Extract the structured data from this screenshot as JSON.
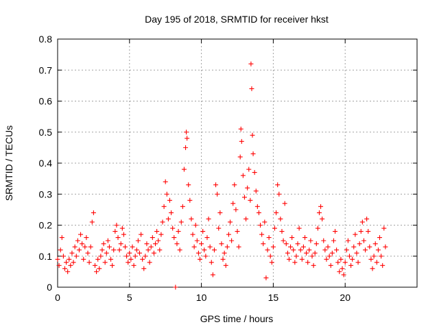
{
  "chart_data": {
    "type": "scatter",
    "title": "Day 195 of 2018, SRMTID for receiver hkst",
    "xlabel": "GPS time / hours",
    "ylabel": "SRMTID / TECUs",
    "xlim": [
      0,
      25
    ],
    "ylim": [
      0,
      0.8
    ],
    "xticks": [
      0,
      5,
      10,
      15,
      20
    ],
    "xtick_labels": [
      "0",
      "5",
      "10",
      "15",
      "20"
    ],
    "yticks": [
      0,
      0.1,
      0.2,
      0.3,
      0.4,
      0.5,
      0.6,
      0.7,
      0.8
    ],
    "ytick_labels": [
      "0",
      "0.1",
      "0.2",
      "0.3",
      "0.4",
      "0.5",
      "0.6",
      "0.7",
      "0.8"
    ],
    "grid": true,
    "marker": "+",
    "color": "#ff0000",
    "series": [
      {
        "name": "SRMTID",
        "points": [
          [
            0.0,
            0.09
          ],
          [
            0.1,
            0.07
          ],
          [
            0.2,
            0.12
          ],
          [
            0.3,
            0.16
          ],
          [
            0.4,
            0.1
          ],
          [
            0.5,
            0.06
          ],
          [
            0.6,
            0.08
          ],
          [
            0.7,
            0.05
          ],
          [
            0.8,
            0.09
          ],
          [
            0.9,
            0.07
          ],
          [
            1.0,
            0.11
          ],
          [
            1.1,
            0.08
          ],
          [
            1.2,
            0.13
          ],
          [
            1.3,
            0.1
          ],
          [
            1.4,
            0.15
          ],
          [
            1.5,
            0.12
          ],
          [
            1.6,
            0.17
          ],
          [
            1.7,
            0.14
          ],
          [
            1.8,
            0.09
          ],
          [
            1.9,
            0.13
          ],
          [
            2.0,
            0.16
          ],
          [
            2.1,
            0.11
          ],
          [
            2.2,
            0.08
          ],
          [
            2.3,
            0.13
          ],
          [
            2.4,
            0.21
          ],
          [
            2.5,
            0.24
          ],
          [
            2.6,
            0.07
          ],
          [
            2.7,
            0.05
          ],
          [
            2.8,
            0.09
          ],
          [
            2.9,
            0.06
          ],
          [
            3.0,
            0.1
          ],
          [
            3.1,
            0.12
          ],
          [
            3.2,
            0.14
          ],
          [
            3.3,
            0.08
          ],
          [
            3.4,
            0.11
          ],
          [
            3.5,
            0.15
          ],
          [
            3.6,
            0.13
          ],
          [
            3.7,
            0.09
          ],
          [
            3.8,
            0.07
          ],
          [
            3.9,
            0.12
          ],
          [
            4.0,
            0.18
          ],
          [
            4.1,
            0.2
          ],
          [
            4.2,
            0.16
          ],
          [
            4.3,
            0.12
          ],
          [
            4.4,
            0.14
          ],
          [
            4.5,
            0.19
          ],
          [
            4.6,
            0.17
          ],
          [
            4.7,
            0.13
          ],
          [
            4.8,
            0.1
          ],
          [
            4.9,
            0.08
          ],
          [
            5.0,
            0.11
          ],
          [
            5.1,
            0.09
          ],
          [
            5.2,
            0.13
          ],
          [
            5.3,
            0.07
          ],
          [
            5.4,
            0.1
          ],
          [
            5.5,
            0.12
          ],
          [
            5.6,
            0.15
          ],
          [
            5.7,
            0.11
          ],
          [
            5.8,
            0.17
          ],
          [
            5.9,
            0.09
          ],
          [
            6.0,
            0.06
          ],
          [
            6.1,
            0.1
          ],
          [
            6.2,
            0.14
          ],
          [
            6.3,
            0.12
          ],
          [
            6.4,
            0.08
          ],
          [
            6.5,
            0.13
          ],
          [
            6.6,
            0.16
          ],
          [
            6.7,
            0.11
          ],
          [
            6.8,
            0.14
          ],
          [
            6.9,
            0.18
          ],
          [
            7.0,
            0.15
          ],
          [
            7.1,
            0.12
          ],
          [
            7.2,
            0.17
          ],
          [
            7.3,
            0.21
          ],
          [
            7.4,
            0.26
          ],
          [
            7.5,
            0.34
          ],
          [
            7.6,
            0.3
          ],
          [
            7.7,
            0.22
          ],
          [
            7.8,
            0.28
          ],
          [
            7.9,
            0.24
          ],
          [
            8.0,
            0.19
          ],
          [
            8.1,
            0.16
          ],
          [
            8.2,
            0.0
          ],
          [
            8.3,
            0.14
          ],
          [
            8.4,
            0.18
          ],
          [
            8.5,
            0.12
          ],
          [
            8.6,
            0.21
          ],
          [
            8.7,
            0.26
          ],
          [
            8.8,
            0.38
          ],
          [
            8.9,
            0.45
          ],
          [
            8.95,
            0.5
          ],
          [
            9.0,
            0.48
          ],
          [
            9.1,
            0.33
          ],
          [
            9.2,
            0.28
          ],
          [
            9.3,
            0.22
          ],
          [
            9.4,
            0.17
          ],
          [
            9.5,
            0.13
          ],
          [
            9.6,
            0.2
          ],
          [
            9.7,
            0.15
          ],
          [
            9.8,
            0.11
          ],
          [
            9.9,
            0.09
          ],
          [
            10.0,
            0.14
          ],
          [
            10.1,
            0.18
          ],
          [
            10.2,
            0.12
          ],
          [
            10.3,
            0.1
          ],
          [
            10.4,
            0.16
          ],
          [
            10.5,
            0.22
          ],
          [
            10.6,
            0.13
          ],
          [
            10.7,
            0.08
          ],
          [
            10.8,
            0.04
          ],
          [
            10.9,
            0.12
          ],
          [
            11.0,
            0.33
          ],
          [
            11.1,
            0.3
          ],
          [
            11.2,
            0.19
          ],
          [
            11.3,
            0.24
          ],
          [
            11.4,
            0.14
          ],
          [
            11.5,
            0.09
          ],
          [
            11.6,
            0.11
          ],
          [
            11.7,
            0.07
          ],
          [
            11.8,
            0.13
          ],
          [
            11.9,
            0.17
          ],
          [
            12.0,
            0.21
          ],
          [
            12.1,
            0.15
          ],
          [
            12.2,
            0.27
          ],
          [
            12.3,
            0.33
          ],
          [
            12.4,
            0.25
          ],
          [
            12.5,
            0.18
          ],
          [
            12.6,
            0.13
          ],
          [
            12.7,
            0.42
          ],
          [
            12.75,
            0.51
          ],
          [
            12.8,
            0.47
          ],
          [
            12.9,
            0.36
          ],
          [
            13.0,
            0.29
          ],
          [
            13.1,
            0.22
          ],
          [
            13.2,
            0.32
          ],
          [
            13.3,
            0.38
          ],
          [
            13.4,
            0.28
          ],
          [
            13.45,
            0.72
          ],
          [
            13.5,
            0.64
          ],
          [
            13.55,
            0.49
          ],
          [
            13.6,
            0.43
          ],
          [
            13.7,
            0.37
          ],
          [
            13.8,
            0.31
          ],
          [
            13.9,
            0.26
          ],
          [
            14.0,
            0.24
          ],
          [
            14.1,
            0.2
          ],
          [
            14.2,
            0.17
          ],
          [
            14.3,
            0.14
          ],
          [
            14.4,
            0.21
          ],
          [
            14.5,
            0.03
          ],
          [
            14.6,
            0.12
          ],
          [
            14.7,
            0.16
          ],
          [
            14.8,
            0.1
          ],
          [
            14.9,
            0.08
          ],
          [
            15.0,
            0.13
          ],
          [
            15.1,
            0.19
          ],
          [
            15.2,
            0.24
          ],
          [
            15.3,
            0.33
          ],
          [
            15.4,
            0.3
          ],
          [
            15.5,
            0.22
          ],
          [
            15.6,
            0.18
          ],
          [
            15.7,
            0.15
          ],
          [
            15.8,
            0.27
          ],
          [
            15.9,
            0.14
          ],
          [
            16.0,
            0.11
          ],
          [
            16.1,
            0.09
          ],
          [
            16.2,
            0.13
          ],
          [
            16.3,
            0.16
          ],
          [
            16.4,
            0.12
          ],
          [
            16.5,
            0.08
          ],
          [
            16.6,
            0.1
          ],
          [
            16.7,
            0.14
          ],
          [
            16.8,
            0.19
          ],
          [
            16.9,
            0.12
          ],
          [
            17.0,
            0.09
          ],
          [
            17.1,
            0.13
          ],
          [
            17.2,
            0.16
          ],
          [
            17.3,
            0.11
          ],
          [
            17.4,
            0.08
          ],
          [
            17.5,
            0.12
          ],
          [
            17.6,
            0.15
          ],
          [
            17.7,
            0.1
          ],
          [
            17.8,
            0.07
          ],
          [
            17.9,
            0.11
          ],
          [
            18.0,
            0.14
          ],
          [
            18.1,
            0.19
          ],
          [
            18.2,
            0.24
          ],
          [
            18.3,
            0.26
          ],
          [
            18.4,
            0.22
          ],
          [
            18.5,
            0.15
          ],
          [
            18.6,
            0.12
          ],
          [
            18.7,
            0.09
          ],
          [
            18.8,
            0.13
          ],
          [
            18.9,
            0.1
          ],
          [
            19.0,
            0.07
          ],
          [
            19.1,
            0.11
          ],
          [
            19.2,
            0.15
          ],
          [
            19.3,
            0.18
          ],
          [
            19.4,
            0.12
          ],
          [
            19.5,
            0.08
          ],
          [
            19.6,
            0.05
          ],
          [
            19.7,
            0.09
          ],
          [
            19.8,
            0.06
          ],
          [
            19.9,
            0.04
          ],
          [
            20.0,
            0.08
          ],
          [
            20.1,
            0.12
          ],
          [
            20.2,
            0.15
          ],
          [
            20.3,
            0.1
          ],
          [
            20.4,
            0.07
          ],
          [
            20.5,
            0.09
          ],
          [
            20.6,
            0.13
          ],
          [
            20.7,
            0.17
          ],
          [
            20.8,
            0.11
          ],
          [
            20.9,
            0.08
          ],
          [
            21.0,
            0.14
          ],
          [
            21.1,
            0.18
          ],
          [
            21.2,
            0.21
          ],
          [
            21.3,
            0.15
          ],
          [
            21.4,
            0.12
          ],
          [
            21.5,
            0.22
          ],
          [
            21.6,
            0.18
          ],
          [
            21.7,
            0.13
          ],
          [
            21.8,
            0.09
          ],
          [
            21.9,
            0.06
          ],
          [
            22.0,
            0.1
          ],
          [
            22.1,
            0.14
          ],
          [
            22.2,
            0.08
          ],
          [
            22.3,
            0.12
          ],
          [
            22.4,
            0.16
          ],
          [
            22.5,
            0.1
          ],
          [
            22.6,
            0.07
          ],
          [
            22.7,
            0.19
          ],
          [
            22.8,
            0.13
          ]
        ]
      }
    ]
  }
}
